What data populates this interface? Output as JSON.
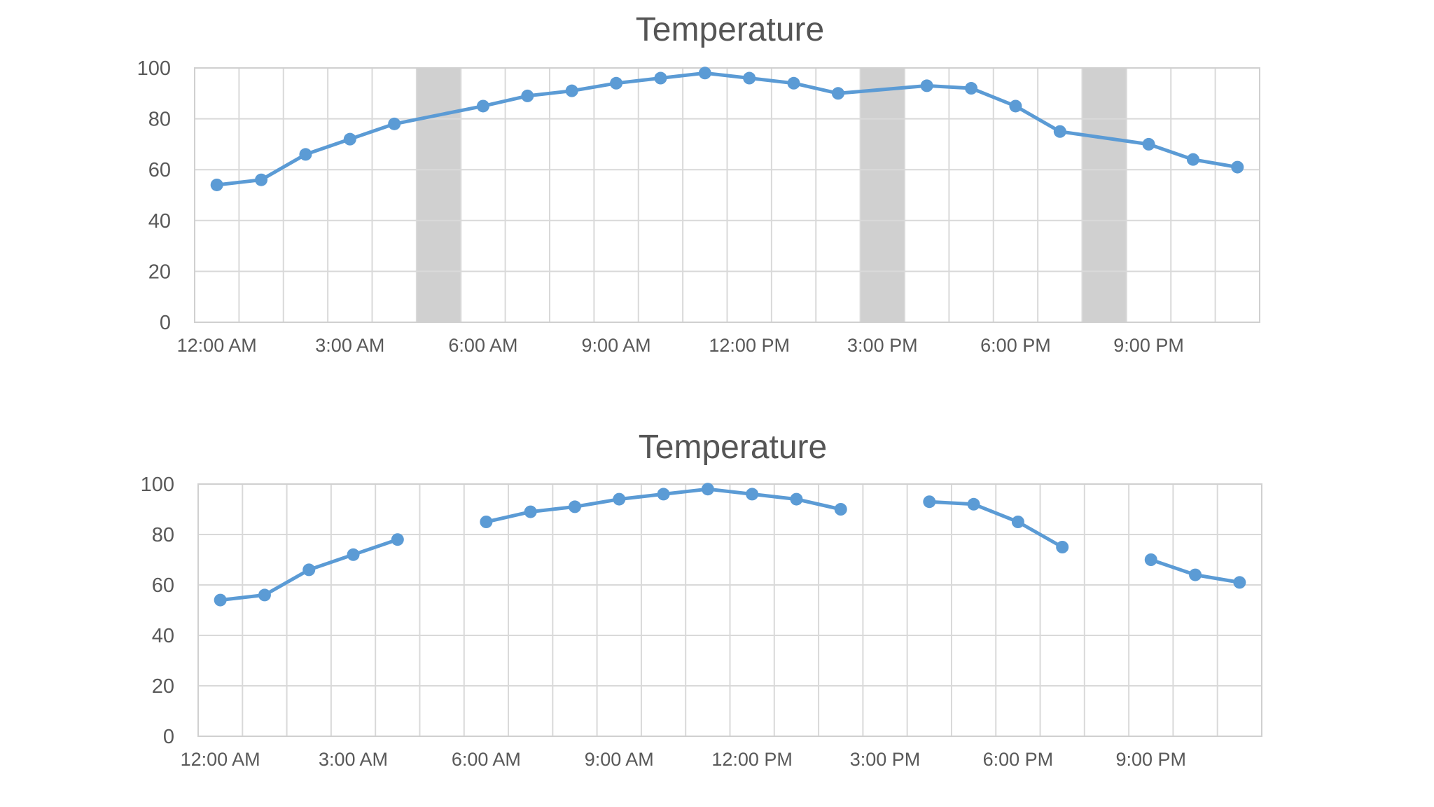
{
  "chart_data": [
    {
      "type": "line",
      "title": "Temperature",
      "x": [
        "12:00 AM",
        "1:00 AM",
        "2:00 AM",
        "3:00 AM",
        "4:00 AM",
        "5:00 AM",
        "6:00 AM",
        "7:00 AM",
        "8:00 AM",
        "9:00 AM",
        "10:00 AM",
        "11:00 AM",
        "12:00 PM",
        "1:00 PM",
        "2:00 PM",
        "3:00 PM",
        "4:00 PM",
        "5:00 PM",
        "6:00 PM",
        "7:00 PM",
        "8:00 PM",
        "9:00 PM",
        "10:00 PM",
        "11:00 PM"
      ],
      "x_tick_labels": [
        "12:00 AM",
        "3:00 AM",
        "6:00 AM",
        "9:00 AM",
        "12:00 PM",
        "3:00 PM",
        "6:00 PM",
        "9:00 PM"
      ],
      "series": [
        {
          "values": [
            54,
            56,
            66,
            72,
            78,
            null,
            85,
            89,
            91,
            94,
            96,
            98,
            96,
            94,
            90,
            null,
            93,
            92,
            85,
            75,
            null,
            70,
            64,
            61
          ]
        }
      ],
      "ylim": [
        0,
        100
      ],
      "y_ticks": [
        0,
        20,
        40,
        60,
        80,
        100
      ],
      "gap_handling": "connect",
      "highlight_missing": true,
      "grid": true,
      "legend": "none",
      "colors": {
        "line": "#5B9BD5",
        "band": "#c8c8c8"
      }
    },
    {
      "type": "line",
      "title": "Temperature",
      "x": [
        "12:00 AM",
        "1:00 AM",
        "2:00 AM",
        "3:00 AM",
        "4:00 AM",
        "5:00 AM",
        "6:00 AM",
        "7:00 AM",
        "8:00 AM",
        "9:00 AM",
        "10:00 AM",
        "11:00 AM",
        "12:00 PM",
        "1:00 PM",
        "2:00 PM",
        "3:00 PM",
        "4:00 PM",
        "5:00 PM",
        "6:00 PM",
        "7:00 PM",
        "8:00 PM",
        "9:00 PM",
        "10:00 PM",
        "11:00 PM"
      ],
      "x_tick_labels": [
        "12:00 AM",
        "3:00 AM",
        "6:00 AM",
        "9:00 AM",
        "12:00 PM",
        "3:00 PM",
        "6:00 PM",
        "9:00 PM"
      ],
      "series": [
        {
          "values": [
            54,
            56,
            66,
            72,
            78,
            null,
            85,
            89,
            91,
            94,
            96,
            98,
            96,
            94,
            90,
            null,
            93,
            92,
            85,
            75,
            null,
            70,
            64,
            61
          ]
        }
      ],
      "ylim": [
        0,
        100
      ],
      "y_ticks": [
        0,
        20,
        40,
        60,
        80,
        100
      ],
      "gap_handling": "break",
      "highlight_missing": false,
      "grid": true,
      "legend": "none",
      "colors": {
        "line": "#5B9BD5"
      }
    }
  ]
}
